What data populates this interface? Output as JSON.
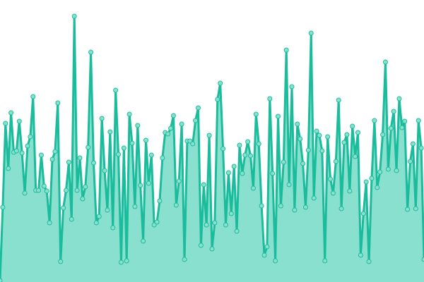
{
  "chart_data": {
    "type": "area",
    "title": "",
    "xlabel": "",
    "ylabel": "",
    "ylim": [
      0,
      400
    ],
    "grid": false,
    "legend": "none",
    "colors": {
      "line": "#1abc9c",
      "fill": "#8ae0cf",
      "marker_fill": "#8ae0cf",
      "marker_stroke": "#1abc9c"
    },
    "values": [
      2,
      106,
      225,
      161,
      240,
      184,
      186,
      228,
      183,
      126,
      193,
      206,
      263,
      130,
      130,
      180,
      136,
      129,
      84,
      174,
      185,
      254,
      29,
      105,
      130,
      170,
      89,
      377,
      130,
      176,
      118,
      135,
      191,
      326,
      169,
      84,
      93,
      232,
      158,
      102,
      213,
      77,
      272,
      181,
      28,
      190,
      30,
      238,
      197,
      107,
      222,
      137,
      58,
      201,
      140,
      180,
      81,
      85,
      115,
      176,
      212,
      210,
      218,
      236,
      109,
      143,
      224,
      32,
      200,
      200,
      196,
      229,
      247,
      52,
      138,
      81,
      208,
      47,
      84,
      259,
      282,
      189,
      81,
      155,
      97,
      164,
      72,
      194,
      154,
      180,
      199,
      179,
      133,
      238,
      196,
      108,
      38,
      50,
      260,
      154,
      30,
      235,
      108,
      170,
      329,
      138,
      277,
      102,
      224,
      203,
      168,
      106,
      187,
      353,
      119,
      214,
      208,
      186,
      30,
      206,
      146,
      126,
      171,
      258,
      104,
      198,
      209,
      129,
      221,
      178,
      212,
      38,
      97,
      142,
      29,
      147,
      229,
      134,
      156,
      209,
      312,
      160,
      218,
      242,
      158,
      260,
      219,
      228,
      103,
      171,
      196,
      104,
      229,
      190,
      32
    ]
  }
}
